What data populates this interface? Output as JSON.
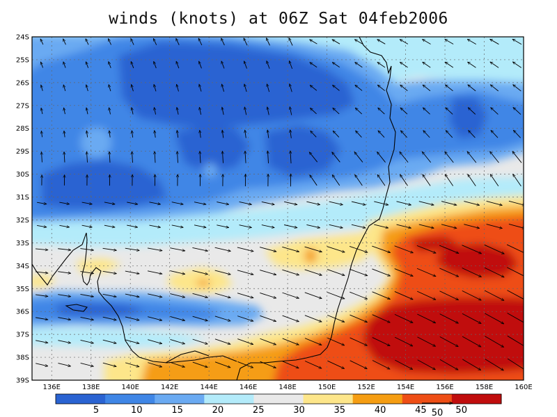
{
  "title": "winds (knots) at 06Z Sat 04feb2006",
  "map": {
    "lat_labels": [
      "24S",
      "25S",
      "26S",
      "27S",
      "28S",
      "29S",
      "30S",
      "31S",
      "32S",
      "33S",
      "34S",
      "35S",
      "36S",
      "37S",
      "38S",
      "39S"
    ],
    "lon_labels": [
      "136E",
      "138E",
      "140E",
      "142E",
      "144E",
      "146E",
      "148E",
      "150E",
      "152E",
      "154E",
      "156E",
      "158E",
      "160E"
    ],
    "lat_range": [
      -39,
      -24
    ],
    "lon_range": [
      135,
      160
    ],
    "grid": "dotted"
  },
  "colorbar": {
    "colors": [
      "#2a63d2",
      "#3f86e6",
      "#6aaaf2",
      "#b3ebfa",
      "#e9e9e9",
      "#fde68a",
      "#f59d12",
      "#ee4e15",
      "#c00d0d"
    ],
    "labels": [
      "5",
      "10",
      "15",
      "20",
      "25",
      "30",
      "35",
      "40",
      "45",
      "50"
    ]
  },
  "reference_vector": {
    "label": "50"
  }
}
